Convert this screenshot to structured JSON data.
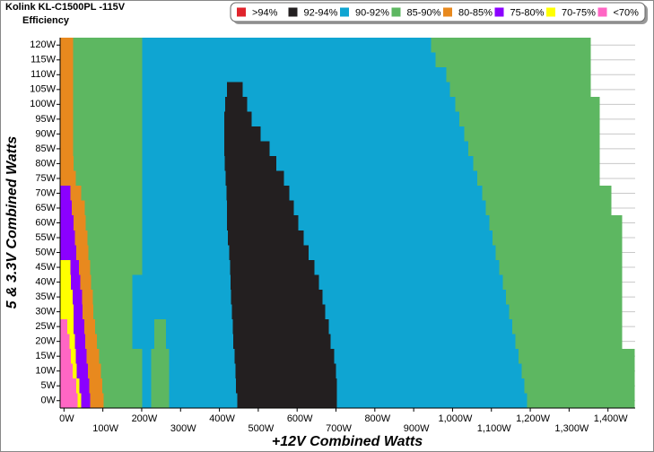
{
  "chart_data": {
    "type": "efficiency-map",
    "title": "Kolink KL-C1500PL -115V",
    "subtitle": "Efficiency",
    "x_label": "+12V Combined Watts",
    "y_label": "5 & 3.3V Combined Watts",
    "xlim": [
      -10,
      1470
    ],
    "ylim": [
      -2.5,
      122.5
    ],
    "row_height": 5,
    "grid": true,
    "legend": "top-right",
    "xticks": [
      {
        "value": 0,
        "label": "0W"
      },
      {
        "value": 100,
        "label": "100W"
      },
      {
        "value": 200,
        "label": "200W"
      },
      {
        "value": 300,
        "label": "300W"
      },
      {
        "value": 400,
        "label": "400W"
      },
      {
        "value": 500,
        "label": "500W"
      },
      {
        "value": 600,
        "label": "600W"
      },
      {
        "value": 700,
        "label": "700W"
      },
      {
        "value": 800,
        "label": "800W"
      },
      {
        "value": 900,
        "label": "900W"
      },
      {
        "value": 1000,
        "label": "1,000W"
      },
      {
        "value": 1100,
        "label": "1,100W"
      },
      {
        "value": 1200,
        "label": "1,200W"
      },
      {
        "value": 1300,
        "label": "1,300W"
      },
      {
        "value": 1400,
        "label": "1,400W"
      }
    ],
    "yticks": [
      {
        "value": 0,
        "label": "0W"
      },
      {
        "value": 5,
        "label": "5W"
      },
      {
        "value": 10,
        "label": "10W"
      },
      {
        "value": 15,
        "label": "15W"
      },
      {
        "value": 20,
        "label": "20W"
      },
      {
        "value": 25,
        "label": "25W"
      },
      {
        "value": 30,
        "label": "30W"
      },
      {
        "value": 35,
        "label": "35W"
      },
      {
        "value": 40,
        "label": "40W"
      },
      {
        "value": 45,
        "label": "45W"
      },
      {
        "value": 50,
        "label": "50W"
      },
      {
        "value": 55,
        "label": "55W"
      },
      {
        "value": 60,
        "label": "60W"
      },
      {
        "value": 65,
        "label": "65W"
      },
      {
        "value": 70,
        "label": "70W"
      },
      {
        "value": 75,
        "label": "75W"
      },
      {
        "value": 80,
        "label": "80W"
      },
      {
        "value": 85,
        "label": "85W"
      },
      {
        "value": 90,
        "label": "90W"
      },
      {
        "value": 95,
        "label": "95W"
      },
      {
        "value": 100,
        "label": "100W"
      },
      {
        "value": 105,
        "label": "105W"
      },
      {
        "value": 110,
        "label": "110W"
      },
      {
        "value": 115,
        "label": "115W"
      },
      {
        "value": 120,
        "label": "120W"
      }
    ],
    "series": [
      {
        "name": ">94%",
        "color": "#e0242c",
        "segments": []
      },
      {
        "name": "92-94%",
        "color": "#231f20",
        "segments": [
          [
            105,
            420,
            460
          ],
          [
            100,
            415,
            471
          ],
          [
            95,
            413,
            483
          ],
          [
            90,
            413,
            506
          ],
          [
            85,
            413,
            529
          ],
          [
            80,
            414,
            547
          ],
          [
            75,
            416,
            566
          ],
          [
            70,
            418,
            580
          ],
          [
            65,
            419,
            591
          ],
          [
            60,
            420,
            603
          ],
          [
            55,
            422,
            617
          ],
          [
            50,
            425,
            630
          ],
          [
            45,
            427,
            644
          ],
          [
            40,
            429,
            656
          ],
          [
            35,
            430,
            665
          ],
          [
            30,
            432,
            672
          ],
          [
            25,
            434,
            681
          ],
          [
            20,
            436,
            686
          ],
          [
            15,
            439,
            695
          ],
          [
            10,
            441,
            700
          ],
          [
            5,
            443,
            702
          ],
          [
            0,
            446,
            702
          ]
        ]
      },
      {
        "name": "90-92%",
        "color": "#0fa5d2",
        "segments": [
          [
            120,
            201,
            945
          ],
          [
            115,
            201,
            956
          ],
          [
            110,
            201,
            984
          ],
          [
            105,
            201,
            420
          ],
          [
            105,
            460,
            993
          ],
          [
            100,
            201,
            415
          ],
          [
            100,
            471,
            1007
          ],
          [
            95,
            201,
            413
          ],
          [
            95,
            483,
            1018
          ],
          [
            90,
            201,
            413
          ],
          [
            90,
            506,
            1030
          ],
          [
            85,
            201,
            413
          ],
          [
            85,
            529,
            1041
          ],
          [
            80,
            201,
            414
          ],
          [
            80,
            547,
            1053
          ],
          [
            75,
            201,
            416
          ],
          [
            75,
            566,
            1064
          ],
          [
            70,
            201,
            418
          ],
          [
            70,
            580,
            1076
          ],
          [
            65,
            201,
            419
          ],
          [
            65,
            591,
            1085
          ],
          [
            60,
            201,
            420
          ],
          [
            60,
            603,
            1095
          ],
          [
            55,
            201,
            422
          ],
          [
            55,
            617,
            1103
          ],
          [
            50,
            201,
            425
          ],
          [
            50,
            630,
            1111
          ],
          [
            45,
            201,
            427
          ],
          [
            45,
            644,
            1120
          ],
          [
            40,
            176,
            429
          ],
          [
            40,
            656,
            1129
          ],
          [
            35,
            176,
            430
          ],
          [
            35,
            665,
            1137
          ],
          [
            30,
            176,
            432
          ],
          [
            30,
            672,
            1146
          ],
          [
            25,
            176,
            233
          ],
          [
            25,
            263,
            434
          ],
          [
            25,
            681,
            1154
          ],
          [
            20,
            176,
            233
          ],
          [
            20,
            263,
            436
          ],
          [
            20,
            686,
            1162
          ],
          [
            15,
            201,
            224
          ],
          [
            15,
            270,
            439
          ],
          [
            15,
            695,
            1170
          ],
          [
            10,
            201,
            224
          ],
          [
            10,
            270,
            441
          ],
          [
            10,
            700,
            1178
          ],
          [
            5,
            201,
            224
          ],
          [
            5,
            270,
            443
          ],
          [
            5,
            702,
            1185
          ],
          [
            0,
            201,
            224
          ],
          [
            0,
            270,
            446
          ],
          [
            0,
            702,
            1192
          ]
        ]
      },
      {
        "name": "85-90%",
        "color": "#5db761",
        "segments": [
          [
            120,
            23,
            201
          ],
          [
            120,
            945,
            1356
          ],
          [
            115,
            23,
            201
          ],
          [
            115,
            956,
            1356
          ],
          [
            110,
            23,
            201
          ],
          [
            110,
            984,
            1356
          ],
          [
            105,
            23,
            201
          ],
          [
            105,
            993,
            1356
          ],
          [
            100,
            23,
            201
          ],
          [
            100,
            1007,
            1379
          ],
          [
            95,
            23,
            201
          ],
          [
            95,
            1018,
            1379
          ],
          [
            90,
            24,
            201
          ],
          [
            90,
            1030,
            1379
          ],
          [
            85,
            24,
            201
          ],
          [
            85,
            1041,
            1379
          ],
          [
            80,
            25,
            201
          ],
          [
            80,
            1053,
            1379
          ],
          [
            75,
            30,
            201
          ],
          [
            75,
            1064,
            1379
          ],
          [
            70,
            44,
            201
          ],
          [
            70,
            1076,
            1409
          ],
          [
            65,
            53,
            201
          ],
          [
            65,
            1085,
            1409
          ],
          [
            60,
            56,
            201
          ],
          [
            60,
            1095,
            1437
          ],
          [
            55,
            60,
            201
          ],
          [
            55,
            1103,
            1437
          ],
          [
            50,
            63,
            201
          ],
          [
            50,
            1111,
            1437
          ],
          [
            45,
            67,
            201
          ],
          [
            45,
            1120,
            1437
          ],
          [
            40,
            70,
            176
          ],
          [
            40,
            1129,
            1437
          ],
          [
            35,
            74,
            176
          ],
          [
            35,
            1137,
            1437
          ],
          [
            30,
            76,
            176
          ],
          [
            30,
            1146,
            1437
          ],
          [
            25,
            80,
            176
          ],
          [
            25,
            233,
            263
          ],
          [
            25,
            1154,
            1437
          ],
          [
            20,
            85,
            176
          ],
          [
            20,
            233,
            263
          ],
          [
            20,
            1162,
            1437
          ],
          [
            15,
            90,
            201
          ],
          [
            15,
            224,
            270
          ],
          [
            15,
            1170,
            1469
          ],
          [
            10,
            95,
            201
          ],
          [
            10,
            224,
            270
          ],
          [
            10,
            1178,
            1469
          ],
          [
            5,
            98,
            201
          ],
          [
            5,
            224,
            270
          ],
          [
            5,
            1185,
            1469
          ],
          [
            0,
            102,
            201
          ],
          [
            0,
            224,
            270
          ],
          [
            0,
            1192,
            1469
          ]
        ]
      },
      {
        "name": "80-85%",
        "color": "#e8891e",
        "segments": [
          [
            120,
            -10,
            23
          ],
          [
            115,
            -10,
            23
          ],
          [
            110,
            -10,
            23
          ],
          [
            105,
            -10,
            23
          ],
          [
            100,
            -10,
            23
          ],
          [
            95,
            -10,
            23
          ],
          [
            90,
            -10,
            24
          ],
          [
            85,
            -10,
            24
          ],
          [
            80,
            -10,
            25
          ],
          [
            75,
            -10,
            30
          ],
          [
            70,
            16,
            44
          ],
          [
            65,
            20,
            53
          ],
          [
            60,
            25,
            56
          ],
          [
            55,
            28,
            60
          ],
          [
            50,
            32,
            63
          ],
          [
            45,
            39,
            67
          ],
          [
            40,
            42,
            70
          ],
          [
            35,
            46,
            74
          ],
          [
            30,
            48,
            76
          ],
          [
            25,
            52,
            80
          ],
          [
            20,
            55,
            85
          ],
          [
            15,
            58,
            90
          ],
          [
            10,
            62,
            95
          ],
          [
            5,
            65,
            98
          ],
          [
            0,
            67,
            102
          ]
        ]
      },
      {
        "name": "75-80%",
        "color": "#8b00ff",
        "segments": [
          [
            70,
            -10,
            16
          ],
          [
            65,
            -10,
            20
          ],
          [
            60,
            -10,
            25
          ],
          [
            55,
            -10,
            28
          ],
          [
            50,
            -10,
            32
          ],
          [
            45,
            16,
            39
          ],
          [
            40,
            18,
            42
          ],
          [
            35,
            22,
            46
          ],
          [
            30,
            25,
            48
          ],
          [
            25,
            25,
            52
          ],
          [
            20,
            28,
            55
          ],
          [
            15,
            30,
            58
          ],
          [
            10,
            33,
            62
          ],
          [
            5,
            40,
            65
          ],
          [
            0,
            44,
            67
          ]
        ]
      },
      {
        "name": "70-75%",
        "color": "#ffff00",
        "segments": [
          [
            45,
            -10,
            16
          ],
          [
            40,
            -10,
            18
          ],
          [
            35,
            -10,
            22
          ],
          [
            30,
            -10,
            25
          ],
          [
            25,
            9,
            25
          ],
          [
            20,
            14,
            28
          ],
          [
            15,
            18,
            30
          ],
          [
            10,
            22,
            33
          ],
          [
            5,
            32,
            40
          ],
          [
            0,
            35,
            44
          ]
        ]
      },
      {
        "name": "<70%",
        "color": "#ff66c4",
        "segments": [
          [
            25,
            -10,
            9
          ],
          [
            20,
            -10,
            14
          ],
          [
            15,
            -10,
            18
          ],
          [
            10,
            -10,
            22
          ],
          [
            5,
            -10,
            32
          ],
          [
            0,
            -10,
            35
          ]
        ]
      }
    ]
  }
}
